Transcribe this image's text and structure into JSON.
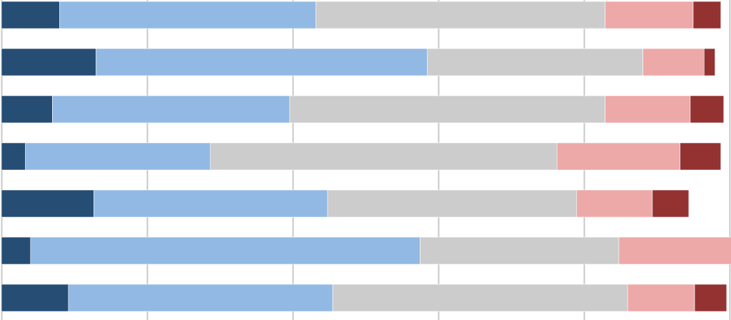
{
  "chart_data": {
    "type": "bar",
    "orientation": "horizontal",
    "stacked": true,
    "title": "",
    "xlabel": "",
    "ylabel": "",
    "xlim": [
      0,
      100
    ],
    "grid": {
      "x": true,
      "y": false
    },
    "legend": "none",
    "colors": [
      "#264d73",
      "#91b9e3",
      "#cccccc",
      "#eda8a8",
      "#943232"
    ],
    "rows": 7,
    "series": [
      {
        "values": [
          8,
          13,
          7,
          3.3,
          12.7,
          4,
          9.2
        ]
      },
      {
        "values": [
          35.2,
          45.5,
          32.6,
          25.4,
          32.1,
          53.5,
          36.3
        ]
      },
      {
        "values": [
          39.7,
          29.6,
          43.3,
          47.6,
          34.2,
          27.3,
          40.5
        ]
      },
      {
        "values": [
          12.1,
          8.4,
          11.7,
          16.9,
          10.4,
          16.7,
          9.2
        ]
      },
      {
        "values": [
          3.8,
          1.5,
          4.6,
          5.6,
          5.0,
          1.5,
          4.4
        ]
      }
    ]
  }
}
